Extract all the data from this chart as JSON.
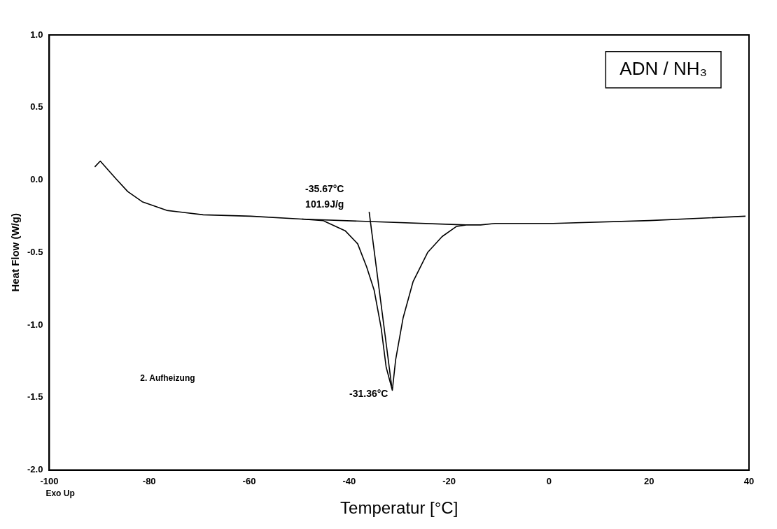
{
  "chart_data": {
    "type": "line",
    "xlabel": "Temperatur [°C]",
    "ylabel": "Heat Flow (W/g)",
    "xlim": [
      -100,
      40
    ],
    "xticks": [
      -100,
      -80,
      -60,
      -40,
      -20,
      0,
      20,
      40
    ],
    "ylim": [
      -2,
      1
    ],
    "yticks": [
      {
        "value": 1,
        "label": "1.0"
      },
      {
        "value": 0.5,
        "label": "0.5"
      },
      {
        "value": 0,
        "label": "0.0"
      },
      {
        "value": -0.5,
        "label": "-0.5"
      },
      {
        "value": -1,
        "label": "-1.0"
      },
      {
        "value": -1.5,
        "label": "-1.5"
      },
      {
        "value": -2,
        "label": "-2.0"
      }
    ],
    "grid": false,
    "legend": false,
    "marker": "none",
    "line_style": "solid",
    "series": [
      {
        "color": "#000000",
        "x": [
          -90.9,
          -89.8,
          -86.7,
          -84.3,
          -81.4,
          -76.5,
          -69.2,
          -59.7,
          -49.5,
          -45.2,
          -44.6,
          -40.8,
          -38.3,
          -36.5,
          -35.0,
          -33.6,
          -32.6,
          -31.36,
          -30.7,
          -29.2,
          -27.2,
          -24.3,
          -21.4,
          -18.5,
          -16.6,
          -13.7,
          -10.8,
          0.8,
          20.1,
          39.3
        ],
        "values": [
          0.09,
          0.13,
          0.01,
          -0.08,
          -0.15,
          -0.21,
          -0.24,
          -0.25,
          -0.27,
          -0.28,
          -0.29,
          -0.35,
          -0.44,
          -0.6,
          -0.76,
          -1.02,
          -1.29,
          -1.45,
          -1.24,
          -0.95,
          -0.7,
          -0.5,
          -0.39,
          -0.32,
          -0.31,
          -0.31,
          -0.3,
          -0.3,
          -0.28,
          -0.25
        ]
      },
      {
        "color": "#000000",
        "x": [
          -49.5,
          -16.7
        ],
        "values": [
          -0.27,
          -0.31
        ]
      },
      {
        "color": "#000000",
        "x": [
          -36.0,
          -31.5
        ],
        "values": [
          -0.22,
          -1.42
        ]
      }
    ],
    "annotations": [
      "-35.67°C",
      "101.9J/g",
      "-31.36°C",
      "2. Aufheizung",
      "ADN / NH₃",
      "Exo Up"
    ]
  }
}
